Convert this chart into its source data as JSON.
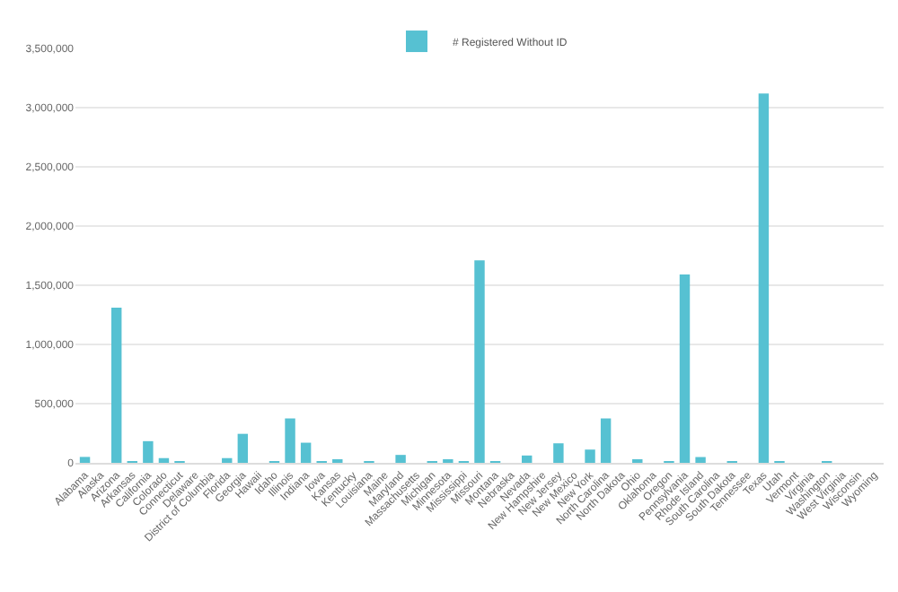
{
  "chart_data": {
    "type": "bar",
    "categories": [
      "Alabama",
      "Alaska",
      "Arizona",
      "Arkansas",
      "California",
      "Colorado",
      "Connecticut",
      "Delaware",
      "District of Columbia",
      "Florida",
      "Georgia",
      "Hawaii",
      "Idaho",
      "Illinois",
      "Indiana",
      "Iowa",
      "Kansas",
      "Kentucky",
      "Louisiana",
      "Maine",
      "Maryland",
      "Massachusetts",
      "Michigan",
      "Minnesota",
      "Mississippi",
      "Missouri",
      "Montana",
      "Nebraska",
      "Nevada",
      "New Hampshire",
      "New Jersey",
      "New Mexico",
      "New York",
      "North Carolina",
      "North Dakota",
      "Ohio",
      "Oklahoma",
      "Oregon",
      "Pennsylvania",
      "Rhode Island",
      "South Carolina",
      "South Dakota",
      "Tennessee",
      "Texas",
      "Utah",
      "Vermont",
      "Virginia",
      "Washington",
      "West Virginia",
      "Wisconsin",
      "Wyoming"
    ],
    "series": [
      {
        "name": "# Registered Without ID",
        "color": "#56c1d2",
        "values": [
          50000,
          0,
          1310000,
          5000,
          183000,
          40000,
          2000,
          0,
          0,
          40000,
          245000,
          0,
          3000,
          375000,
          170000,
          5000,
          18000,
          0,
          2000,
          0,
          67000,
          0,
          13000,
          18000,
          15000,
          1710000,
          15000,
          0,
          62000,
          0,
          165000,
          0,
          112000,
          375000,
          0,
          30000,
          0,
          15000,
          1590000,
          49000,
          0,
          8000,
          0,
          3120000,
          8000,
          0,
          0,
          12000,
          0,
          0,
          0
        ]
      }
    ],
    "ylim": [
      0,
      3500000
    ],
    "yticks": [
      {
        "value": 0,
        "label": "0"
      },
      {
        "value": 500000,
        "label": "500,000"
      },
      {
        "value": 1000000,
        "label": "1,000,000"
      },
      {
        "value": 1500000,
        "label": "1,500,000"
      },
      {
        "value": 2000000,
        "label": "2,000,000"
      },
      {
        "value": 2500000,
        "label": "2,500,000"
      },
      {
        "value": 3000000,
        "label": "3,000,000"
      },
      {
        "value": 3500000,
        "label": "3,500,000"
      }
    ],
    "grid": true,
    "legend": "top"
  }
}
